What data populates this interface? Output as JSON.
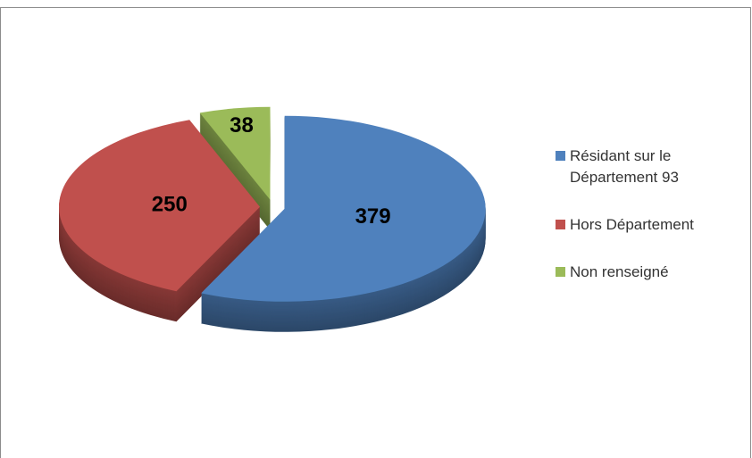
{
  "chart_data": {
    "type": "pie",
    "categories": [
      "Résidant sur le Département 93",
      "Hors Département",
      "Non renseigné"
    ],
    "values": [
      379,
      250,
      38
    ],
    "colors": [
      "#4f81bd",
      "#c0504d",
      "#9bbb59"
    ],
    "legend": "right"
  }
}
